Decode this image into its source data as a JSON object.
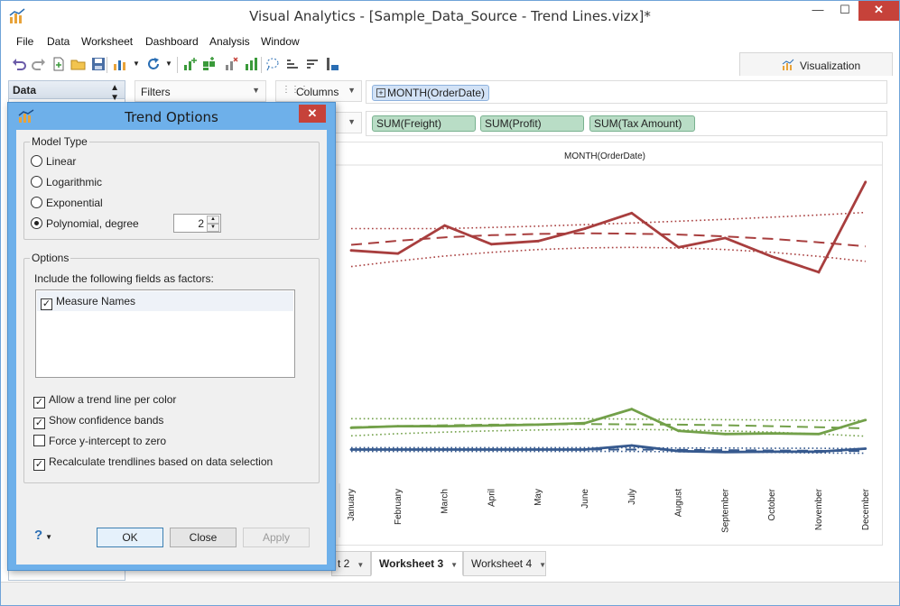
{
  "window": {
    "title": "Visual Analytics - [Sample_Data_Source - Trend Lines.vizx]*",
    "minimize": "—",
    "maximize": "☐",
    "close": "✕"
  },
  "menu": [
    "File",
    "Data",
    "Worksheet",
    "Dashboard",
    "Analysis",
    "Window"
  ],
  "visualization_tab": "Visualization",
  "data_panel": {
    "title": "Data"
  },
  "shelves": {
    "filters": "Filters",
    "columns": "Columns",
    "column_pills": [
      "MONTH(OrderDate)"
    ],
    "row_pills": [
      "SUM(Freight)",
      "SUM(Profit)",
      "SUM(Tax Amount)"
    ]
  },
  "viz": {
    "header": "MONTH(OrderDate)"
  },
  "sheet_tabs": [
    {
      "label": "t 2",
      "active": false
    },
    {
      "label": "Worksheet 3",
      "active": true
    },
    {
      "label": "Worksheet 4",
      "active": false
    }
  ],
  "dialog": {
    "title": "Trend Options",
    "close": "✕",
    "model_type_label": "Model Type",
    "model_types": [
      {
        "label": "Linear",
        "selected": false
      },
      {
        "label": "Logarithmic",
        "selected": false
      },
      {
        "label": "Exponential",
        "selected": false
      },
      {
        "label": "Polynomial, degree",
        "selected": true
      }
    ],
    "degree": "2",
    "options_label": "Options",
    "factors_label": "Include the following fields as factors:",
    "factors": [
      {
        "label": "Measure Names",
        "checked": true
      }
    ],
    "checkboxes": [
      {
        "label": "Allow a trend line per color",
        "checked": true
      },
      {
        "label": "Show confidence bands",
        "checked": true
      },
      {
        "label": "Force y-intercept to zero",
        "checked": false
      },
      {
        "label": "Recalculate trendlines based on data selection",
        "checked": true
      }
    ],
    "help": "?",
    "buttons": {
      "ok": "OK",
      "close": "Close",
      "apply": "Apply"
    }
  },
  "chart_data": {
    "type": "line",
    "categories": [
      "January",
      "February",
      "March",
      "April",
      "May",
      "June",
      "July",
      "August",
      "September",
      "October",
      "November",
      "December"
    ],
    "ylim": [
      0,
      100
    ],
    "grid": false,
    "series": [
      {
        "color": "#a83e3e",
        "values": [
          74,
          73,
          82,
          76,
          77,
          81,
          86,
          75,
          78,
          72,
          67,
          96
        ],
        "trend": [
          75.8,
          77.1,
          78.2,
          78.9,
          79.3,
          79.5,
          79.4,
          79.1,
          78.5,
          77.7,
          76.6,
          75.3
        ],
        "upper": [
          81,
          81,
          81,
          81.4,
          81.8,
          82.3,
          82.8,
          83.4,
          84,
          84.7,
          85.4,
          86.2
        ],
        "lower": [
          68.8,
          70.6,
          72.2,
          73.4,
          74.3,
          74.8,
          75,
          74.8,
          74.3,
          73.4,
          72.1,
          70.5
        ]
      },
      {
        "color": "#72a049",
        "values": [
          17,
          17.5,
          17.5,
          17.7,
          18,
          18.5,
          23,
          16,
          15,
          15.2,
          15,
          19.5
        ],
        "trend": [
          17.2,
          17.5,
          17.8,
          18,
          18.1,
          18.2,
          18.1,
          18,
          17.8,
          17.5,
          17.2,
          16.8
        ],
        "upper": [
          19.9,
          19.9,
          19.9,
          19.9,
          19.9,
          19.9,
          19.8,
          19.7,
          19.6,
          19.5,
          19.4,
          19.3
        ],
        "lower": [
          14.4,
          15.1,
          15.6,
          16,
          16.3,
          16.5,
          16.5,
          16.3,
          16,
          15.6,
          15,
          14.3
        ]
      },
      {
        "color": "#36598e",
        "values": [
          10,
          10,
          10,
          10,
          10,
          10,
          11.3,
          9.5,
          9.2,
          9.3,
          9.3,
          10.3
        ],
        "trend": [
          10,
          10,
          10,
          10,
          10,
          10,
          10,
          9.9,
          9.8,
          9.7,
          9.6,
          9.5
        ],
        "upper": [
          10.6,
          10.6,
          10.6,
          10.6,
          10.6,
          10.6,
          10.6,
          10.5,
          10.5,
          10.4,
          10.4,
          10.3
        ],
        "lower": [
          9.4,
          9.4,
          9.4,
          9.4,
          9.4,
          9.4,
          9.4,
          9.3,
          9.2,
          9.1,
          8.9,
          8.8
        ]
      }
    ]
  }
}
